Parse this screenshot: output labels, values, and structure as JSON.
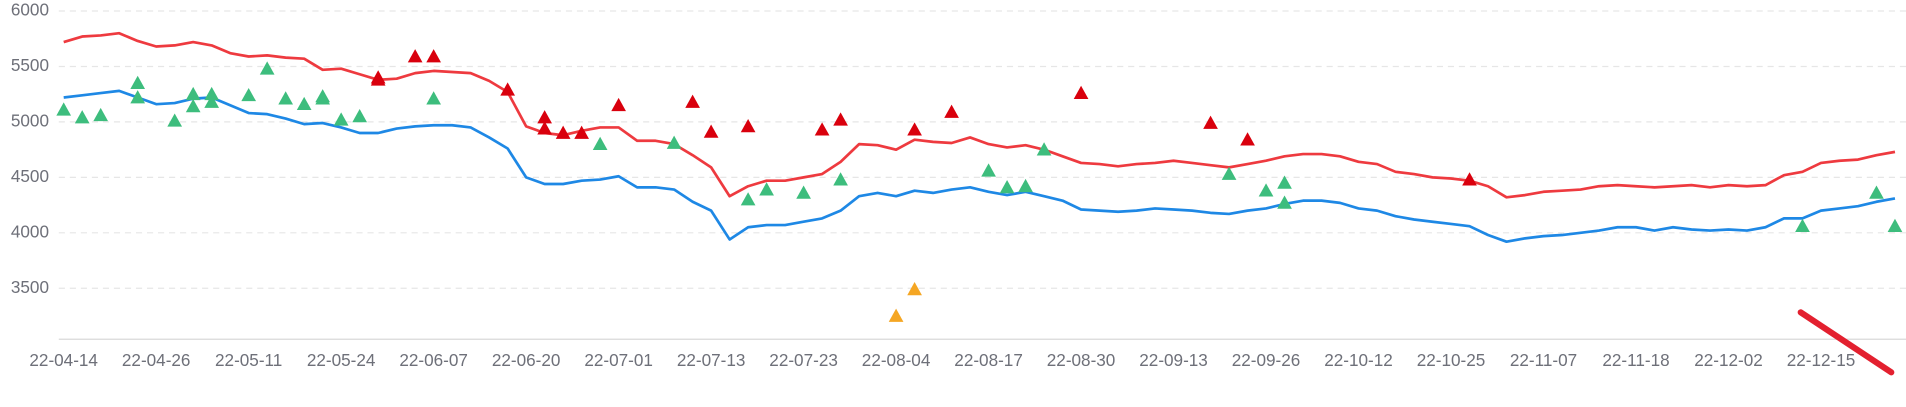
{
  "chart_data": {
    "type": "line",
    "categories": [
      "22-04-14",
      null,
      null,
      null,
      null,
      "22-04-26",
      null,
      null,
      null,
      null,
      "22-05-11",
      null,
      null,
      null,
      null,
      "22-05-24",
      null,
      null,
      null,
      null,
      "22-06-07",
      null,
      null,
      null,
      null,
      "22-06-20",
      null,
      null,
      null,
      null,
      "22-07-01",
      null,
      null,
      null,
      null,
      "22-07-13",
      null,
      null,
      null,
      null,
      "22-07-23",
      null,
      null,
      null,
      null,
      "22-08-04",
      null,
      null,
      null,
      null,
      "22-08-17",
      null,
      null,
      null,
      null,
      "22-08-30",
      null,
      null,
      null,
      null,
      "22-09-13",
      null,
      null,
      null,
      null,
      "22-09-26",
      null,
      null,
      null,
      null,
      "22-10-12",
      null,
      null,
      null,
      null,
      "22-10-25",
      null,
      null,
      null,
      null,
      "22-11-07",
      null,
      null,
      null,
      null,
      "22-11-18",
      null,
      null,
      null,
      null,
      "22-12-02",
      null,
      null,
      null,
      null,
      "22-12-15",
      null,
      null,
      null,
      null
    ],
    "ylim": [
      3040,
      6000
    ],
    "yticks": [
      3500,
      4000,
      4500,
      5000,
      5500,
      6000
    ],
    "grid": true,
    "series": [
      {
        "color": "#ee3a3f",
        "values": [
          5720,
          5770,
          5780,
          5800,
          5730,
          5680,
          5690,
          5720,
          5690,
          5620,
          5590,
          5600,
          5580,
          5570,
          5470,
          5480,
          5430,
          5380,
          5390,
          5440,
          5460,
          5450,
          5440,
          5370,
          5270,
          4960,
          4900,
          4880,
          4920,
          4950,
          4950,
          4830,
          4830,
          4800,
          4700,
          4590,
          4330,
          4420,
          4470,
          4470,
          4500,
          4530,
          4640,
          4800,
          4790,
          4750,
          4840,
          4820,
          4810,
          4860,
          4800,
          4770,
          4790,
          4750,
          4690,
          4630,
          4620,
          4600,
          4620,
          4630,
          4650,
          4630,
          4610,
          4590,
          4620,
          4650,
          4690,
          4710,
          4710,
          4690,
          4640,
          4620,
          4550,
          4530,
          4500,
          4490,
          4470,
          4420,
          4320,
          4340,
          4370,
          4380,
          4390,
          4420,
          4430,
          4420,
          4410,
          4420,
          4430,
          4410,
          4430,
          4420,
          4430,
          4520,
          4550,
          4630,
          4650,
          4660,
          4700,
          4730
        ]
      },
      {
        "color": "#1e88e5",
        "values": [
          5220,
          5240,
          5260,
          5280,
          5220,
          5160,
          5170,
          5210,
          5220,
          5150,
          5080,
          5070,
          5030,
          4980,
          4990,
          4950,
          4900,
          4900,
          4940,
          4960,
          4970,
          4970,
          4950,
          4860,
          4760,
          4500,
          4440,
          4440,
          4470,
          4480,
          4510,
          4410,
          4410,
          4390,
          4280,
          4200,
          3940,
          4050,
          4070,
          4070,
          4100,
          4130,
          4200,
          4330,
          4360,
          4330,
          4380,
          4360,
          4390,
          4410,
          4370,
          4340,
          4370,
          4330,
          4290,
          4210,
          4200,
          4190,
          4200,
          4220,
          4210,
          4200,
          4180,
          4170,
          4200,
          4220,
          4260,
          4290,
          4290,
          4270,
          4220,
          4200,
          4150,
          4120,
          4100,
          4080,
          4060,
          3980,
          3920,
          3950,
          3970,
          3980,
          4000,
          4020,
          4050,
          4050,
          4020,
          4050,
          4030,
          4020,
          4030,
          4020,
          4050,
          4130,
          4130,
          4200,
          4220,
          4240,
          4280,
          4310
        ]
      },
      {
        "color": "#d9000d",
        "marker": "triangle",
        "values": [
          null,
          null,
          null,
          null,
          null,
          null,
          null,
          null,
          null,
          null,
          null,
          null,
          null,
          null,
          null,
          null,
          null,
          5380,
          null,
          5590,
          5590,
          null,
          null,
          null,
          5290,
          null,
          4940,
          4900,
          4900,
          null,
          5150,
          null,
          null,
          null,
          5180,
          4910,
          null,
          4960,
          null,
          null,
          null,
          4930,
          5020,
          null,
          null,
          null,
          4930,
          null,
          5090,
          null,
          null,
          null,
          null,
          null,
          null,
          5260,
          null,
          null,
          null,
          null,
          null,
          null,
          4990,
          null,
          4840,
          null,
          null,
          null,
          null,
          null,
          null,
          null,
          null,
          null,
          null,
          null,
          4480,
          null,
          null,
          null,
          null,
          null,
          null,
          null,
          null,
          null,
          null,
          null,
          null,
          null,
          null,
          null,
          null,
          null,
          null,
          null,
          null,
          null,
          null,
          null
        ]
      },
      {
        "color": "#d9000d",
        "marker": "triangle",
        "values": [
          null,
          null,
          null,
          null,
          null,
          null,
          null,
          null,
          null,
          null,
          null,
          null,
          null,
          null,
          null,
          null,
          null,
          5400,
          null,
          null,
          null,
          null,
          null,
          null,
          null,
          null,
          5040,
          null,
          null,
          null,
          null,
          null,
          null,
          null,
          null,
          null,
          null,
          null,
          null,
          null,
          null,
          null,
          null,
          null,
          null,
          null,
          null,
          null,
          null,
          null,
          null,
          null,
          null,
          null,
          null,
          null,
          null,
          null,
          null,
          null,
          null,
          null,
          null,
          null,
          null,
          null,
          null,
          null,
          null,
          null,
          null,
          null,
          null,
          null,
          null,
          null,
          null,
          null,
          null,
          null,
          null,
          null,
          null,
          null,
          null,
          null,
          null,
          null,
          null,
          null,
          null,
          null,
          null,
          null,
          null,
          null,
          null,
          null,
          null,
          null
        ]
      },
      {
        "color": "#3dbd7d",
        "marker": "triangle",
        "values": [
          5110,
          5040,
          5060,
          null,
          5220,
          null,
          5010,
          5250,
          5180,
          null,
          5240,
          5480,
          5210,
          5160,
          5230,
          5020,
          5050,
          null,
          null,
          null,
          5210,
          null,
          null,
          null,
          null,
          null,
          null,
          null,
          null,
          4800,
          null,
          null,
          null,
          4810,
          null,
          null,
          null,
          4300,
          4390,
          null,
          4360,
          null,
          4480,
          null,
          null,
          null,
          null,
          null,
          null,
          null,
          4560,
          4410,
          4420,
          4750,
          null,
          null,
          null,
          null,
          null,
          null,
          null,
          null,
          null,
          4530,
          null,
          4380,
          4450,
          null,
          null,
          null,
          null,
          null,
          null,
          null,
          null,
          null,
          null,
          null,
          null,
          null,
          null,
          null,
          null,
          null,
          null,
          null,
          null,
          null,
          null,
          null,
          null,
          null,
          null,
          null,
          4060,
          null,
          null,
          null,
          4360,
          4060
        ]
      },
      {
        "color": "#3dbd7d",
        "marker": "triangle",
        "values": [
          null,
          null,
          null,
          null,
          5350,
          null,
          null,
          5140,
          5250,
          null,
          null,
          null,
          null,
          null,
          5210,
          null,
          null,
          null,
          null,
          null,
          null,
          null,
          null,
          null,
          null,
          null,
          null,
          null,
          null,
          null,
          null,
          null,
          null,
          null,
          null,
          null,
          null,
          null,
          null,
          null,
          null,
          null,
          null,
          null,
          null,
          null,
          null,
          null,
          null,
          null,
          null,
          null,
          null,
          null,
          null,
          null,
          null,
          null,
          null,
          null,
          null,
          null,
          null,
          null,
          null,
          null,
          4270,
          null,
          null,
          null,
          null,
          null,
          null,
          null,
          null,
          null,
          null,
          null,
          null,
          null,
          null,
          null,
          null,
          null,
          null,
          null,
          null,
          null,
          null,
          null,
          null,
          null,
          null,
          null,
          null,
          null,
          null,
          null,
          null,
          null
        ]
      },
      {
        "color": "#f5a623",
        "marker": "triangle",
        "values": [
          null,
          null,
          null,
          null,
          null,
          null,
          null,
          null,
          null,
          null,
          null,
          null,
          null,
          null,
          null,
          null,
          null,
          null,
          null,
          null,
          null,
          null,
          null,
          null,
          null,
          null,
          null,
          null,
          null,
          null,
          null,
          null,
          null,
          null,
          null,
          null,
          null,
          null,
          null,
          null,
          null,
          null,
          null,
          null,
          null,
          3250,
          3490,
          null,
          null,
          null,
          null,
          null,
          null,
          null,
          null,
          null,
          null,
          null,
          null,
          null,
          null,
          null,
          null,
          null,
          null,
          null,
          null,
          null,
          null,
          null,
          null,
          null,
          null,
          null,
          null,
          null,
          null,
          null,
          null,
          null,
          null,
          null,
          null,
          null,
          null,
          null,
          null,
          null,
          null,
          null,
          null,
          null,
          null,
          null,
          null,
          null,
          null,
          null,
          null,
          null
        ]
      }
    ]
  }
}
